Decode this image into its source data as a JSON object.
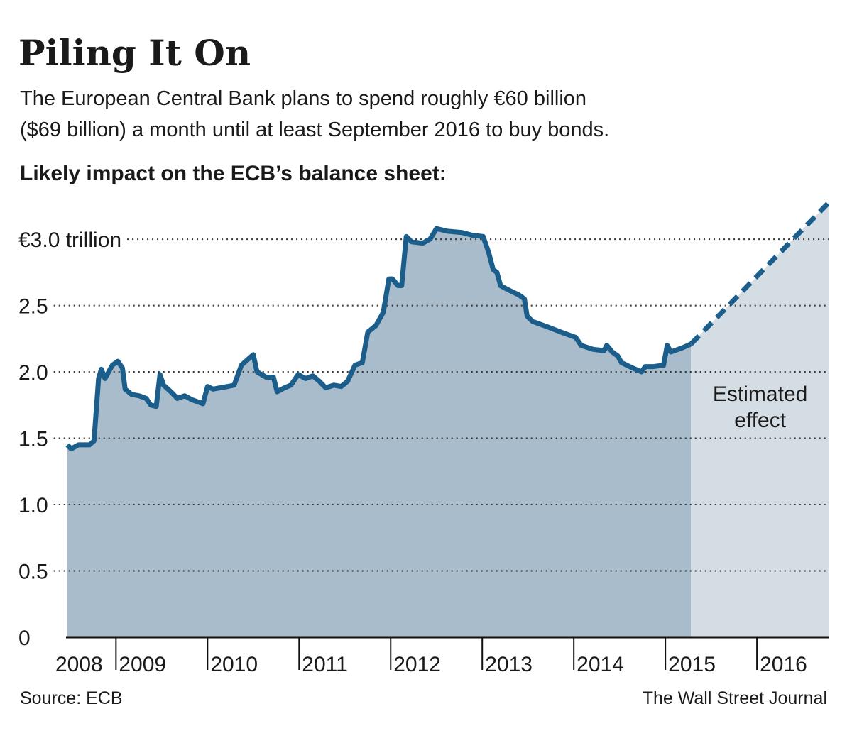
{
  "chart_data": {
    "type": "area-line",
    "title": "Piling It On",
    "subtitle": [
      "The European Central Bank plans to spend roughly €60 billion",
      "($69 billion) a month until at least September 2016 to buy bonds."
    ],
    "chart_heading": "Likely impact on the ECB’s balance sheet:",
    "source": "Source: ECB",
    "credit": "The Wall Street Journal",
    "annotation": [
      "Estimated",
      "effect"
    ],
    "series": [
      {
        "color": "#1b5e8c",
        "fill": "#a9bccb",
        "x": [
          2008.47,
          2008.51,
          2008.59,
          2008.71,
          2008.76,
          2008.81,
          2008.84,
          2008.88,
          2008.92,
          2008.96,
          2009.02,
          2009.07,
          2009.1,
          2009.17,
          2009.25,
          2009.33,
          2009.38,
          2009.44,
          2009.48,
          2009.52,
          2009.6,
          2009.67,
          2009.75,
          2009.83,
          2009.95,
          2010.0,
          2010.06,
          2010.22,
          2010.29,
          2010.37,
          2010.45,
          2010.5,
          2010.54,
          2010.64,
          2010.72,
          2010.76,
          2010.84,
          2010.91,
          2010.99,
          2011.07,
          2011.15,
          2011.22,
          2011.29,
          2011.38,
          2011.46,
          2011.53,
          2011.61,
          2011.69,
          2011.75,
          2011.84,
          2011.92,
          2011.98,
          2012.02,
          2012.08,
          2012.12,
          2012.17,
          2012.23,
          2012.35,
          2012.43,
          2012.5,
          2012.62,
          2012.78,
          2012.89,
          2013.01,
          2013.07,
          2013.12,
          2013.16,
          2013.2,
          2013.28,
          2013.4,
          2013.46,
          2013.49,
          2013.55,
          2013.71,
          2013.86,
          2014.02,
          2014.08,
          2014.21,
          2014.33,
          2014.36,
          2014.42,
          2014.48,
          2014.52,
          2014.64,
          2014.74,
          2014.78,
          2014.87,
          2014.98,
          2015.02,
          2015.06,
          2015.18,
          2015.28
        ],
        "values": [
          1.45,
          1.42,
          1.45,
          1.45,
          1.48,
          1.95,
          2.02,
          1.95,
          2.0,
          2.05,
          2.08,
          2.03,
          1.87,
          1.83,
          1.82,
          1.8,
          1.75,
          1.74,
          1.98,
          1.9,
          1.85,
          1.8,
          1.82,
          1.79,
          1.76,
          1.89,
          1.87,
          1.89,
          1.9,
          2.05,
          2.1,
          2.13,
          2.0,
          1.96,
          1.96,
          1.85,
          1.88,
          1.9,
          1.98,
          1.95,
          1.97,
          1.93,
          1.88,
          1.9,
          1.89,
          1.93,
          2.05,
          2.07,
          2.3,
          2.35,
          2.45,
          2.7,
          2.7,
          2.65,
          2.65,
          3.02,
          2.98,
          2.97,
          3.0,
          3.08,
          3.06,
          3.05,
          3.03,
          3.02,
          2.9,
          2.77,
          2.75,
          2.65,
          2.62,
          2.58,
          2.55,
          2.42,
          2.38,
          2.34,
          2.3,
          2.26,
          2.2,
          2.17,
          2.16,
          2.2,
          2.15,
          2.12,
          2.07,
          2.03,
          2.0,
          2.04,
          2.04,
          2.05,
          2.2,
          2.15,
          2.18,
          2.21
        ]
      },
      {
        "color": "#1b5e8c",
        "fill": "#d5dde4",
        "dashed": true,
        "x": [
          2015.28,
          2016.79
        ],
        "values": [
          2.21,
          3.28
        ]
      }
    ],
    "xlim": [
      2008.47,
      2016.79
    ],
    "xticks": [
      2008,
      2009,
      2010,
      2011,
      2012,
      2013,
      2014,
      2015,
      2016
    ],
    "ylim": [
      0,
      3.3
    ],
    "yticks": [
      0,
      0.5,
      {
        "value": 1,
        "label": "1.0"
      },
      1.5,
      {
        "value": 2,
        "label": "2.0"
      },
      2.5,
      {
        "value": 3,
        "label": "€3.0 trillion"
      }
    ],
    "grid": true
  }
}
